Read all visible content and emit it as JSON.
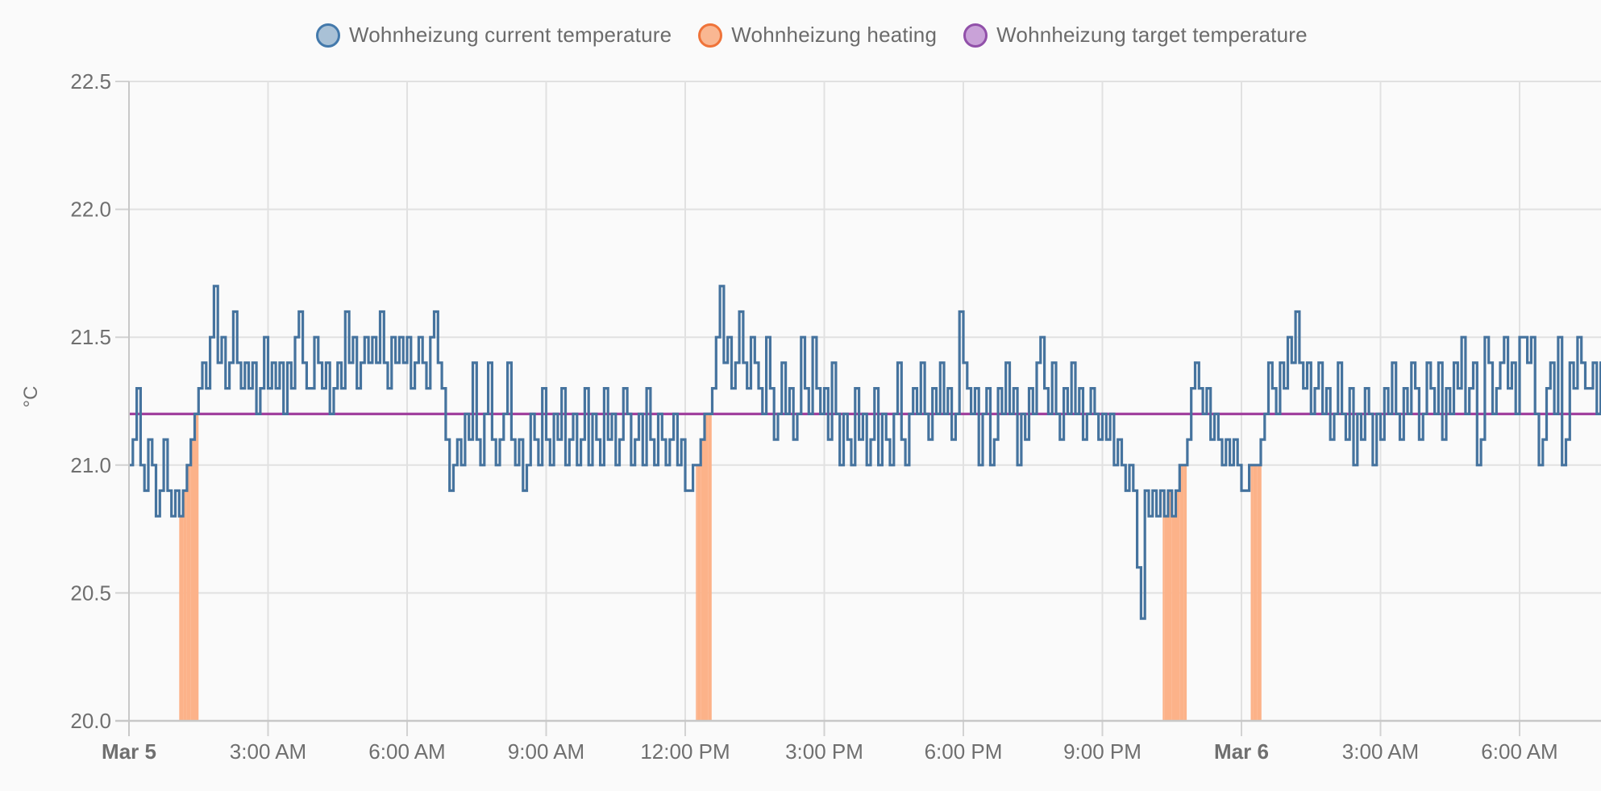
{
  "legend": {
    "items": [
      {
        "label": "Wohnheizung current temperature",
        "border_color": "#4379ab",
        "fill_color": "#a9c1d6"
      },
      {
        "label": "Wohnheizung heating",
        "border_color": "#ef7339",
        "fill_color": "#f9b792"
      },
      {
        "label": "Wohnheizung target temperature",
        "border_color": "#9150a9",
        "fill_color": "#c9a2d8"
      }
    ]
  },
  "chart_data": {
    "type": "line",
    "subtype": "step-after",
    "title": "",
    "xlabel": "",
    "ylabel": "°C",
    "ylim": [
      20.0,
      22.5
    ],
    "grid": true,
    "legend_position": "top",
    "colors": {
      "background": "#fafafa",
      "grid": "#e1e1e1",
      "axis": "#c8c8c8",
      "tick_stub": "#d2d2d2",
      "tick_text": "#6f6f6f",
      "current_temperature": "#45739e",
      "heating": "#fcb289",
      "target_temperature": "#a1419e"
    },
    "y_ticks": [
      {
        "value": 22.5,
        "label": "22.5"
      },
      {
        "value": 22.0,
        "label": "22.0"
      },
      {
        "value": 21.5,
        "label": "21.5"
      },
      {
        "value": 21.0,
        "label": "21.0"
      },
      {
        "value": 20.5,
        "label": "20.5"
      },
      {
        "value": 20.0,
        "label": "20.0"
      }
    ],
    "x_axis": {
      "start": "Mar 5 12:00 AM",
      "end_hours_from_start": 31.76,
      "tick_interval_hours": 3,
      "ticks": [
        {
          "hours": 0,
          "label": "Mar 5",
          "bold": true
        },
        {
          "hours": 3,
          "label": "3:00 AM",
          "bold": false
        },
        {
          "hours": 6,
          "label": "6:00 AM",
          "bold": false
        },
        {
          "hours": 9,
          "label": "9:00 AM",
          "bold": false
        },
        {
          "hours": 12,
          "label": "12:00 PM",
          "bold": false
        },
        {
          "hours": 15,
          "label": "3:00 PM",
          "bold": false
        },
        {
          "hours": 18,
          "label": "6:00 PM",
          "bold": false
        },
        {
          "hours": 21,
          "label": "9:00 PM",
          "bold": false
        },
        {
          "hours": 24,
          "label": "Mar 6",
          "bold": true
        },
        {
          "hours": 27,
          "label": "3:00 AM",
          "bold": false
        },
        {
          "hours": 30,
          "label": "6:00 AM",
          "bold": false
        }
      ]
    },
    "series": [
      {
        "name": "Wohnheizung current temperature",
        "type": "step-line",
        "color": "#45739e",
        "unit": "°C",
        "sample_step_minutes": 5,
        "values": [
          21.0,
          21.1,
          21.3,
          21.0,
          20.9,
          21.1,
          21.0,
          20.8,
          20.9,
          21.1,
          20.9,
          20.8,
          20.9,
          20.8,
          20.9,
          21.0,
          21.1,
          21.2,
          21.3,
          21.4,
          21.3,
          21.5,
          21.7,
          21.4,
          21.5,
          21.3,
          21.4,
          21.6,
          21.4,
          21.3,
          21.4,
          21.3,
          21.4,
          21.2,
          21.3,
          21.5,
          21.3,
          21.4,
          21.3,
          21.4,
          21.2,
          21.4,
          21.3,
          21.5,
          21.6,
          21.4,
          21.3,
          21.3,
          21.5,
          21.4,
          21.3,
          21.4,
          21.2,
          21.3,
          21.4,
          21.3,
          21.6,
          21.4,
          21.5,
          21.3,
          21.4,
          21.5,
          21.4,
          21.5,
          21.4,
          21.6,
          21.4,
          21.3,
          21.5,
          21.4,
          21.5,
          21.4,
          21.5,
          21.3,
          21.4,
          21.5,
          21.4,
          21.3,
          21.5,
          21.6,
          21.4,
          21.3,
          21.1,
          20.9,
          21.0,
          21.1,
          21.0,
          21.2,
          21.1,
          21.4,
          21.1,
          21.0,
          21.2,
          21.4,
          21.1,
          21.0,
          21.1,
          21.2,
          21.4,
          21.1,
          21.0,
          21.1,
          20.9,
          21.0,
          21.2,
          21.1,
          21.0,
          21.3,
          21.1,
          21.0,
          21.2,
          21.1,
          21.3,
          21.0,
          21.1,
          21.2,
          21.0,
          21.1,
          21.3,
          21.0,
          21.2,
          21.1,
          21.0,
          21.3,
          21.1,
          21.2,
          21.0,
          21.1,
          21.3,
          21.2,
          21.0,
          21.1,
          21.2,
          21.0,
          21.3,
          21.1,
          21.0,
          21.2,
          21.1,
          21.0,
          21.1,
          21.2,
          21.0,
          21.1,
          20.9,
          20.9,
          21.0,
          21.0,
          21.1,
          21.2,
          21.2,
          21.3,
          21.5,
          21.7,
          21.4,
          21.5,
          21.3,
          21.4,
          21.6,
          21.4,
          21.3,
          21.5,
          21.4,
          21.3,
          21.2,
          21.5,
          21.3,
          21.1,
          21.2,
          21.4,
          21.2,
          21.3,
          21.1,
          21.2,
          21.5,
          21.3,
          21.2,
          21.5,
          21.3,
          21.2,
          21.3,
          21.1,
          21.4,
          21.2,
          21.0,
          21.2,
          21.1,
          21.0,
          21.3,
          21.1,
          21.2,
          21.0,
          21.1,
          21.3,
          21.0,
          21.2,
          21.1,
          21.0,
          21.2,
          21.4,
          21.1,
          21.0,
          21.2,
          21.3,
          21.2,
          21.4,
          21.2,
          21.1,
          21.3,
          21.2,
          21.4,
          21.2,
          21.3,
          21.1,
          21.2,
          21.6,
          21.4,
          21.3,
          21.2,
          21.3,
          21.0,
          21.2,
          21.3,
          21.0,
          21.1,
          21.3,
          21.2,
          21.4,
          21.2,
          21.3,
          21.0,
          21.2,
          21.1,
          21.3,
          21.2,
          21.4,
          21.5,
          21.3,
          21.2,
          21.4,
          21.2,
          21.1,
          21.3,
          21.2,
          21.4,
          21.2,
          21.3,
          21.1,
          21.2,
          21.3,
          21.2,
          21.1,
          21.2,
          21.1,
          21.2,
          21.0,
          21.1,
          21.0,
          20.9,
          21.0,
          20.9,
          20.6,
          20.4,
          20.9,
          20.8,
          20.9,
          20.8,
          20.9,
          20.8,
          20.9,
          20.8,
          20.9,
          21.0,
          21.0,
          21.1,
          21.3,
          21.4,
          21.3,
          21.2,
          21.3,
          21.1,
          21.2,
          21.1,
          21.0,
          21.1,
          21.0,
          21.1,
          21.0,
          20.9,
          20.9,
          21.0,
          21.0,
          21.0,
          21.1,
          21.2,
          21.4,
          21.3,
          21.2,
          21.4,
          21.3,
          21.5,
          21.4,
          21.6,
          21.4,
          21.3,
          21.4,
          21.2,
          21.3,
          21.4,
          21.2,
          21.3,
          21.1,
          21.2,
          21.4,
          21.2,
          21.1,
          21.3,
          21.0,
          21.2,
          21.1,
          21.3,
          21.2,
          21.0,
          21.2,
          21.1,
          21.3,
          21.2,
          21.4,
          21.2,
          21.1,
          21.3,
          21.2,
          21.4,
          21.3,
          21.1,
          21.2,
          21.4,
          21.3,
          21.2,
          21.4,
          21.1,
          21.3,
          21.2,
          21.4,
          21.3,
          21.5,
          21.2,
          21.3,
          21.4,
          21.0,
          21.1,
          21.5,
          21.4,
          21.2,
          21.3,
          21.4,
          21.5,
          21.3,
          21.4,
          21.2,
          21.5,
          21.5,
          21.4,
          21.5,
          21.2,
          21.0,
          21.1,
          21.3,
          21.4,
          21.2,
          21.5,
          21.0,
          21.1,
          21.4,
          21.3,
          21.5,
          21.4,
          21.3,
          21.3,
          21.4,
          21.2,
          21.4
        ]
      },
      {
        "name": "Wohnheizung target temperature",
        "type": "constant-line",
        "color": "#a1419e",
        "unit": "°C",
        "value": 21.2
      },
      {
        "name": "Wohnheizung heating",
        "type": "area-under-temperature",
        "color": "#fcb289",
        "on_intervals_hours": [
          [
            1.083,
            1.5
          ],
          [
            12.23,
            12.57
          ],
          [
            22.3,
            22.82
          ],
          [
            24.2,
            24.43
          ]
        ]
      }
    ]
  }
}
